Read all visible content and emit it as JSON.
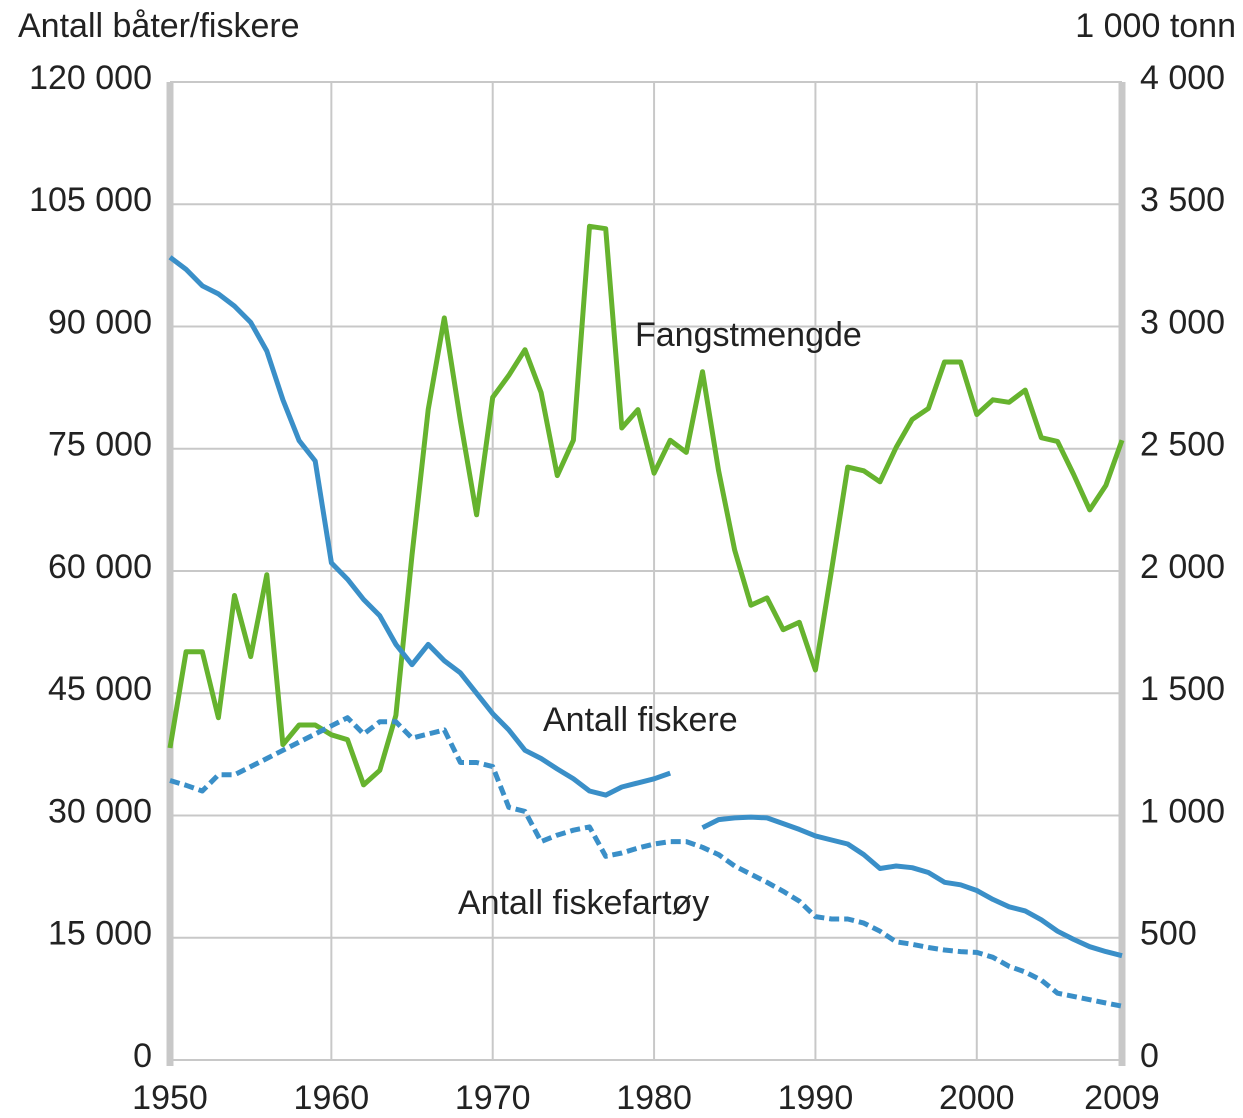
{
  "chart_data": {
    "type": "line",
    "y_label": "Antall båter/fiskere",
    "y2_label": "1 000 tonn",
    "x": [
      1950,
      1951,
      1952,
      1953,
      1954,
      1955,
      1956,
      1957,
      1958,
      1959,
      1960,
      1961,
      1962,
      1963,
      1964,
      1965,
      1966,
      1967,
      1968,
      1969,
      1970,
      1971,
      1972,
      1973,
      1974,
      1975,
      1976,
      1977,
      1978,
      1979,
      1980,
      1981,
      1982,
      1983,
      1984,
      1985,
      1986,
      1987,
      1988,
      1989,
      1990,
      1991,
      1992,
      1993,
      1994,
      1995,
      1996,
      1997,
      1998,
      1999,
      2000,
      2001,
      2002,
      2003,
      2004,
      2005,
      2006,
      2007,
      2008,
      2009
    ],
    "xlim": [
      1950,
      2009
    ],
    "xticks": [
      1950,
      1960,
      1970,
      1980,
      1990,
      2000,
      2009
    ],
    "ylim": [
      0,
      120000
    ],
    "yticks": [
      0,
      {
        "value": 15000,
        "label": "15 000"
      },
      {
        "value": 30000,
        "label": "30 000"
      },
      {
        "value": 45000,
        "label": "45 000"
      },
      {
        "value": 60000,
        "label": "60 000"
      },
      {
        "value": 75000,
        "label": "75 000"
      },
      {
        "value": 90000,
        "label": "90 000"
      },
      {
        "value": 105000,
        "label": "105 000"
      },
      {
        "value": 120000,
        "label": "120 000"
      }
    ],
    "y2lim": [
      0,
      4000
    ],
    "y2ticks": [
      0,
      500,
      {
        "value": 1000,
        "label": "1 000"
      },
      {
        "value": 1500,
        "label": "1 500"
      },
      {
        "value": 2000,
        "label": "2 000"
      },
      {
        "value": 2500,
        "label": "2 500"
      },
      {
        "value": 3000,
        "label": "3 000"
      },
      {
        "value": 3500,
        "label": "3 500"
      },
      {
        "value": 4000,
        "label": "4 000"
      }
    ],
    "grid": true,
    "series": [
      {
        "name": "Fangstmengde",
        "color": "#66b32e",
        "axis": "y2",
        "dashed": false,
        "values": [
          1276,
          1670,
          1670,
          1400,
          1900,
          1650,
          1985,
          1290,
          1370,
          1370,
          1330,
          1310,
          1125,
          1185,
          1410,
          2065,
          2660,
          3035,
          2615,
          2230,
          2710,
          2800,
          2905,
          2730,
          2390,
          2535,
          3410,
          3400,
          2585,
          2660,
          2400,
          2535,
          2485,
          2815,
          2410,
          2085,
          1860,
          1890,
          1760,
          1790,
          1595,
          2005,
          2425,
          2410,
          2365,
          2505,
          2620,
          2665,
          2855,
          2855,
          2640,
          2700,
          2690,
          2740,
          2545,
          2530,
          2395,
          2250,
          2350,
          2535
        ]
      },
      {
        "name": "Antall fiskere",
        "color": "#3a8fc8",
        "dashed": false,
        "values": [
          98500,
          97000,
          95000,
          94000,
          92500,
          90500,
          87000,
          81000,
          76000,
          73500,
          61000,
          59000,
          56500,
          54500,
          51000,
          48500,
          51000,
          49000,
          47500,
          45000,
          42500,
          40500,
          38000,
          37000,
          35700,
          34500,
          33000,
          32500,
          33500,
          34000,
          34500,
          35200,
          null,
          28500,
          29500,
          29700,
          29800,
          29700,
          29000,
          28300,
          27500,
          27000,
          26500,
          25200,
          23500,
          23800,
          23600,
          23000,
          21800,
          21500,
          20800,
          19700,
          18800,
          18300,
          17200,
          15800,
          14800,
          13900,
          13300,
          12800
        ]
      },
      {
        "name": "Antall fiskefartøy",
        "color": "#3a8fc8",
        "dashed": true,
        "values": [
          34300,
          33700,
          33000,
          35000,
          35000,
          36000,
          37000,
          38000,
          39000,
          40000,
          41000,
          42000,
          40000,
          41500,
          41500,
          39500,
          40000,
          40500,
          36500,
          36500,
          36000,
          31000,
          30500,
          26800,
          27600,
          28200,
          28600,
          25000,
          25400,
          26000,
          26500,
          26800,
          26800,
          26100,
          25200,
          23800,
          22800,
          21800,
          20700,
          19500,
          17600,
          17300,
          17300,
          16800,
          15800,
          14500,
          14200,
          13800,
          13500,
          13300,
          13200,
          12600,
          11500,
          10800,
          9800,
          8200,
          7800,
          7400,
          7000,
          6600
        ]
      }
    ]
  }
}
